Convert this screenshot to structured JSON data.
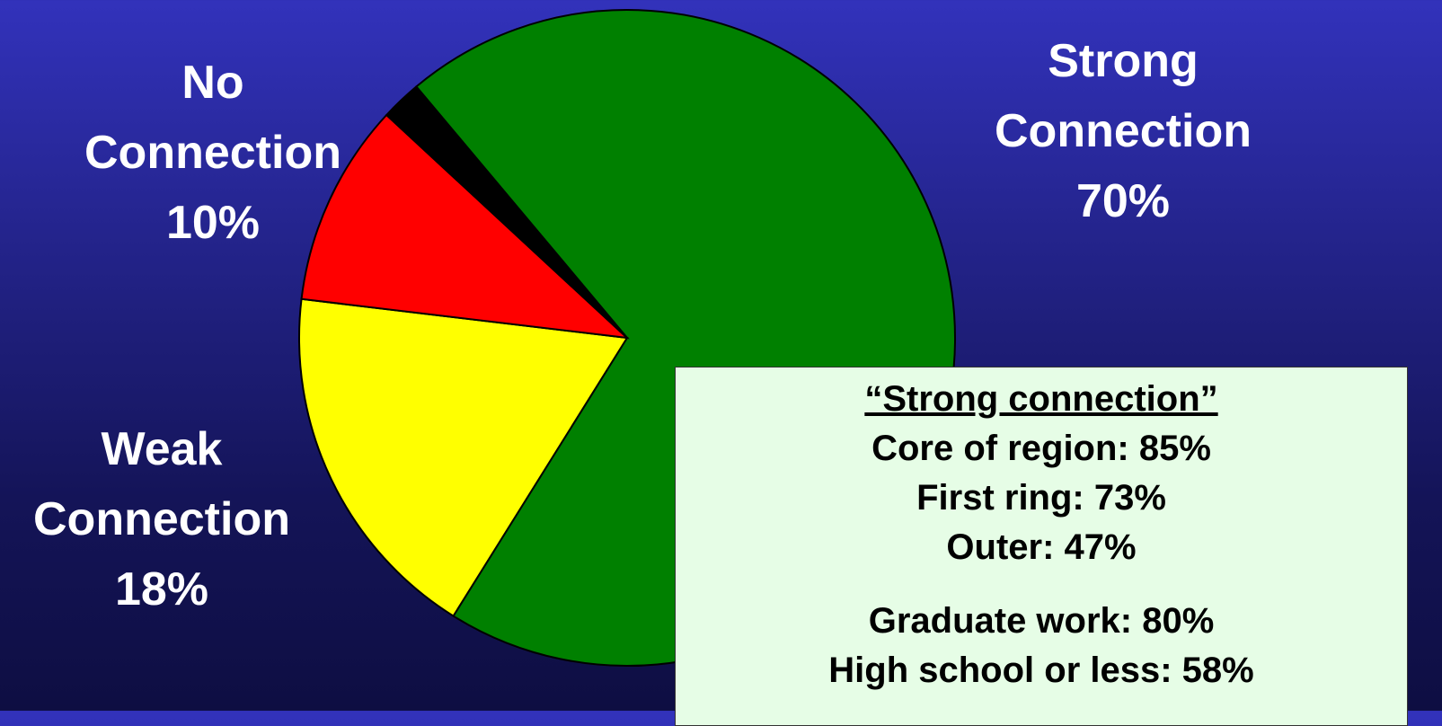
{
  "chart_data": {
    "type": "pie",
    "categories": [
      "Strong Connection",
      "Weak Connection",
      "No Connection",
      null
    ],
    "values": [
      70,
      18,
      10,
      2
    ],
    "value_labels": [
      "70%",
      "18%",
      "10%",
      null
    ],
    "colors": [
      "#008000",
      "#ffff00",
      "#ff0000",
      "#000000"
    ]
  },
  "box": {
    "title": "“Strong connection”",
    "groups": [
      [
        "Core of region: 85%",
        "First ring: 73%",
        "Outer: 47%"
      ],
      [
        "Graduate work: 80%",
        "High school or less: 58%"
      ]
    ]
  }
}
